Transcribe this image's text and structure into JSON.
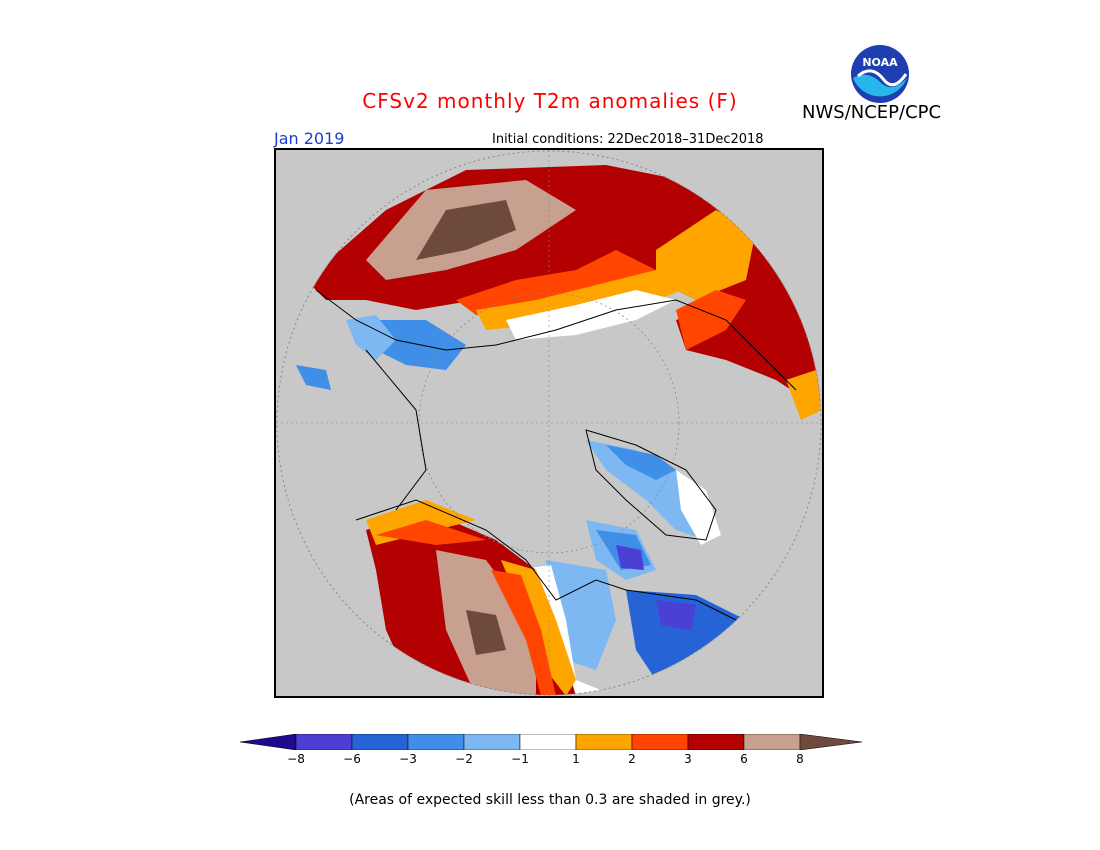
{
  "header": {
    "title": "CFSv2 monthly T2m anomalies (F)",
    "agency": "NWS/NCEP/CPC",
    "period": "Jan 2019",
    "initial_conditions": "Initial conditions: 22Dec2018–31Dec2018",
    "logo_text": "NOAA"
  },
  "legend": {
    "colors": [
      "#1e0a8c",
      "#4b3fd4",
      "#2563d6",
      "#3f8ee8",
      "#7db8f2",
      "#ffffff",
      "#ffa500",
      "#ff4500",
      "#b30000",
      "#c8a090",
      "#6e4a3c"
    ],
    "ticks": [
      "−8",
      "−6",
      "−3",
      "−2",
      "−1",
      "1",
      "2",
      "3",
      "6",
      "8"
    ]
  },
  "footer": {
    "note": "(Areas of expected skill less than 0.3 are shaded in grey.)"
  },
  "map": {
    "background_color": "#c8c8c8",
    "projection": "north polar stereographic"
  }
}
